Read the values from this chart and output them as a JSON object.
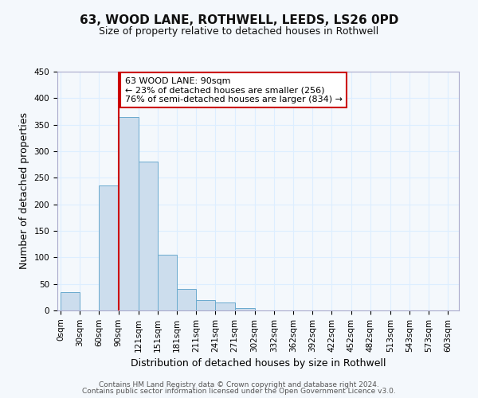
{
  "title": "63, WOOD LANE, ROTHWELL, LEEDS, LS26 0PD",
  "subtitle": "Size of property relative to detached houses in Rothwell",
  "xlabel": "Distribution of detached houses by size in Rothwell",
  "ylabel": "Number of detached properties",
  "bar_left_edges": [
    0,
    30,
    60,
    90,
    121,
    151,
    181,
    211,
    241,
    271,
    302,
    332,
    362,
    392,
    422,
    452,
    482,
    513,
    543,
    573
  ],
  "bar_widths": [
    30,
    30,
    30,
    31,
    30,
    30,
    30,
    30,
    30,
    31,
    30,
    30,
    30,
    30,
    30,
    30,
    31,
    30,
    30,
    30
  ],
  "bar_heights": [
    35,
    0,
    235,
    365,
    280,
    105,
    40,
    20,
    15,
    5,
    0,
    0,
    0,
    0,
    0,
    0,
    0,
    0,
    0,
    0
  ],
  "bar_color": "#ccdded",
  "bar_edge_color": "#6aaace",
  "red_line_x": 90,
  "annotation_line1": "63 WOOD LANE: 90sqm",
  "annotation_line2": "← 23% of detached houses are smaller (256)",
  "annotation_line3": "76% of semi-detached houses are larger (834) →",
  "annotation_box_color": "white",
  "annotation_box_edge_color": "#cc0000",
  "ylim": [
    0,
    450
  ],
  "xtick_labels": [
    "0sqm",
    "30sqm",
    "60sqm",
    "90sqm",
    "121sqm",
    "151sqm",
    "181sqm",
    "211sqm",
    "241sqm",
    "271sqm",
    "302sqm",
    "332sqm",
    "362sqm",
    "392sqm",
    "422sqm",
    "452sqm",
    "482sqm",
    "513sqm",
    "543sqm",
    "573sqm",
    "603sqm"
  ],
  "xtick_positions": [
    0,
    30,
    60,
    90,
    121,
    151,
    181,
    211,
    241,
    271,
    302,
    332,
    362,
    392,
    422,
    452,
    482,
    513,
    543,
    573,
    603
  ],
  "ytick_positions": [
    0,
    50,
    100,
    150,
    200,
    250,
    300,
    350,
    400,
    450
  ],
  "footer_line1": "Contains HM Land Registry data © Crown copyright and database right 2024.",
  "footer_line2": "Contains public sector information licensed under the Open Government Licence v3.0.",
  "grid_color": "#ddeeff",
  "background_color": "#f4f8fc",
  "title_fontsize": 11,
  "subtitle_fontsize": 9,
  "axis_label_fontsize": 9,
  "tick_fontsize": 7.5,
  "footer_fontsize": 6.5
}
